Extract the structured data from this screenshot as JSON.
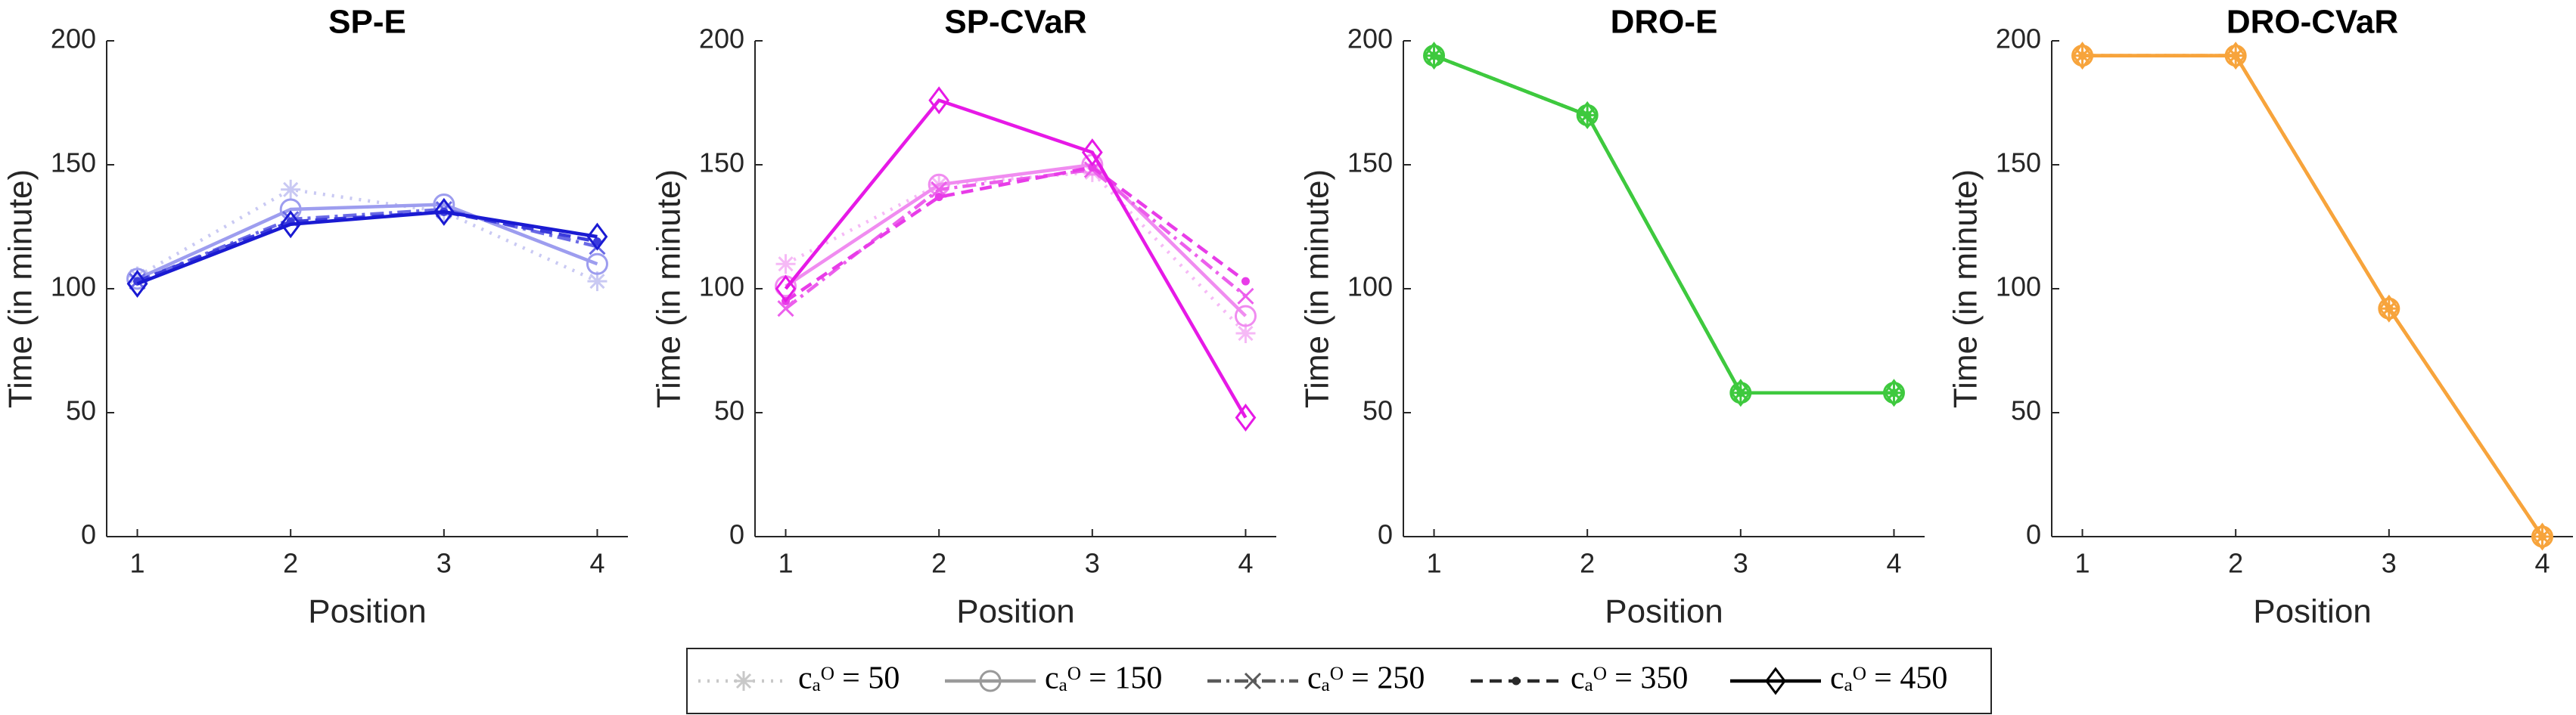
{
  "chart_data": [
    {
      "type": "line",
      "title": "SP-E",
      "x_label": "Position",
      "y_label": "Time (in minute)",
      "x": [
        1,
        2,
        3,
        4
      ],
      "xlim": [
        0.8,
        4.2
      ],
      "xticks": [
        1,
        2,
        3,
        4
      ],
      "ylim": [
        0,
        200
      ],
      "yticks": [
        0,
        50,
        100,
        150,
        200
      ],
      "series": [
        {
          "color": "#c9c9f3",
          "values": [
            105,
            140,
            131,
            103
          ]
        },
        {
          "color": "#9d9def",
          "values": [
            104,
            132,
            134,
            110
          ]
        },
        {
          "color": "#6a6ae6",
          "values": [
            103,
            128,
            132,
            117
          ]
        },
        {
          "color": "#3b3bdc",
          "values": [
            103,
            127,
            131,
            119
          ]
        },
        {
          "color": "#1a1ad2",
          "values": [
            102,
            126,
            131,
            121
          ]
        }
      ]
    },
    {
      "type": "line",
      "title": "SP-CVaR",
      "x_label": "Position",
      "y_label": "Time (in minute)",
      "x": [
        1,
        2,
        3,
        4
      ],
      "xlim": [
        0.8,
        4.2
      ],
      "xticks": [
        1,
        2,
        3,
        4
      ],
      "ylim": [
        0,
        200
      ],
      "yticks": [
        0,
        50,
        100,
        150,
        200
      ],
      "series": [
        {
          "color": "#f6b9f6",
          "values": [
            110,
            142,
            147,
            82
          ]
        },
        {
          "color": "#f08cf0",
          "values": [
            101,
            142,
            150,
            89
          ]
        },
        {
          "color": "#ec5fec",
          "values": [
            92,
            140,
            148,
            97
          ]
        },
        {
          "color": "#e83ce8",
          "values": [
            95,
            137,
            149,
            103
          ]
        },
        {
          "color": "#e619e6",
          "values": [
            100,
            176,
            155,
            48
          ]
        }
      ]
    },
    {
      "type": "line",
      "title": "DRO-E",
      "x_label": "Position",
      "y_label": "Time (in minute)",
      "x": [
        1,
        2,
        3,
        4
      ],
      "xlim": [
        0.8,
        4.2
      ],
      "xticks": [
        1,
        2,
        3,
        4
      ],
      "ylim": [
        0,
        200
      ],
      "yticks": [
        0,
        50,
        100,
        150,
        200
      ],
      "series": [
        {
          "color": "#3ec93e",
          "values": [
            194,
            170,
            58,
            58
          ]
        },
        {
          "color": "#3ec93e",
          "values": [
            194,
            170,
            58,
            58
          ]
        },
        {
          "color": "#3ec93e",
          "values": [
            194,
            170,
            58,
            58
          ]
        },
        {
          "color": "#3ec93e",
          "values": [
            194,
            170,
            58,
            58
          ]
        },
        {
          "color": "#3ec93e",
          "values": [
            194,
            170,
            58,
            58
          ]
        }
      ]
    },
    {
      "type": "line",
      "title": "DRO-CVaR",
      "x_label": "Position",
      "y_label": "Time (in minute)",
      "x": [
        1,
        2,
        3,
        4
      ],
      "xlim": [
        0.8,
        4.2
      ],
      "xticks": [
        1,
        2,
        3,
        4
      ],
      "ylim": [
        0,
        200
      ],
      "yticks": [
        0,
        50,
        100,
        150,
        200
      ],
      "series": [
        {
          "color": "#f7a43c",
          "values": [
            194,
            194,
            92,
            0
          ]
        },
        {
          "color": "#f7a43c",
          "values": [
            194,
            194,
            92,
            0
          ]
        },
        {
          "color": "#f7a43c",
          "values": [
            194,
            194,
            92,
            0
          ]
        },
        {
          "color": "#f7a43c",
          "values": [
            194,
            194,
            92,
            0
          ]
        },
        {
          "color": "#f7a43c",
          "values": [
            194,
            194,
            92,
            0
          ]
        }
      ]
    }
  ],
  "legend": [
    {
      "name": "cₐᴼ = 50",
      "line": "dotted",
      "marker": "asterisk",
      "color": "#c8c8c8"
    },
    {
      "name": "cₐᴼ = 150",
      "line": "solid",
      "marker": "circle",
      "color": "#9a9a9a"
    },
    {
      "name": "cₐᴼ = 250",
      "line": "dashdot",
      "marker": "cross",
      "color": "#5a5a5a"
    },
    {
      "name": "cₐᴼ = 350",
      "line": "dashed",
      "marker": "point",
      "color": "#2a2a2a"
    },
    {
      "name": "cₐᴼ = 450",
      "line": "solid",
      "marker": "diamond",
      "color": "#000000"
    }
  ]
}
